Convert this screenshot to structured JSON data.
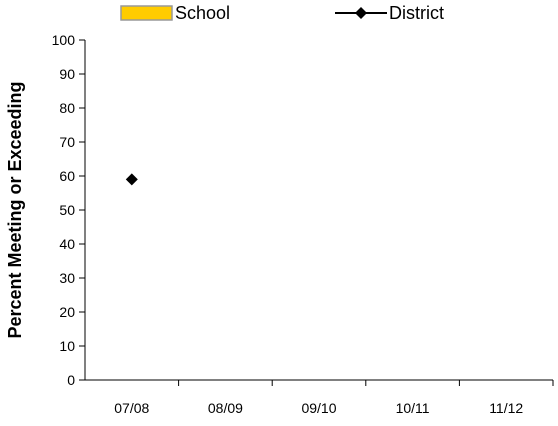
{
  "chart_data": {
    "type": "line",
    "categories": [
      "07/08",
      "08/09",
      "09/10",
      "10/11",
      "11/12"
    ],
    "ylabel": "Percent Meeting or Exceeding",
    "ylim": [
      0,
      100
    ],
    "yticks": [
      0,
      10,
      20,
      30,
      40,
      50,
      60,
      70,
      80,
      90,
      100
    ],
    "grid": false,
    "legend_placement": "top",
    "series": [
      {
        "name": "School",
        "kind": "bar",
        "color": "#FFCC00",
        "values": [
          null,
          null,
          null,
          null,
          null
        ]
      },
      {
        "name": "District",
        "kind": "line",
        "marker": "diamond",
        "color": "#000000",
        "values": [
          59,
          null,
          null,
          null,
          null
        ]
      }
    ]
  }
}
